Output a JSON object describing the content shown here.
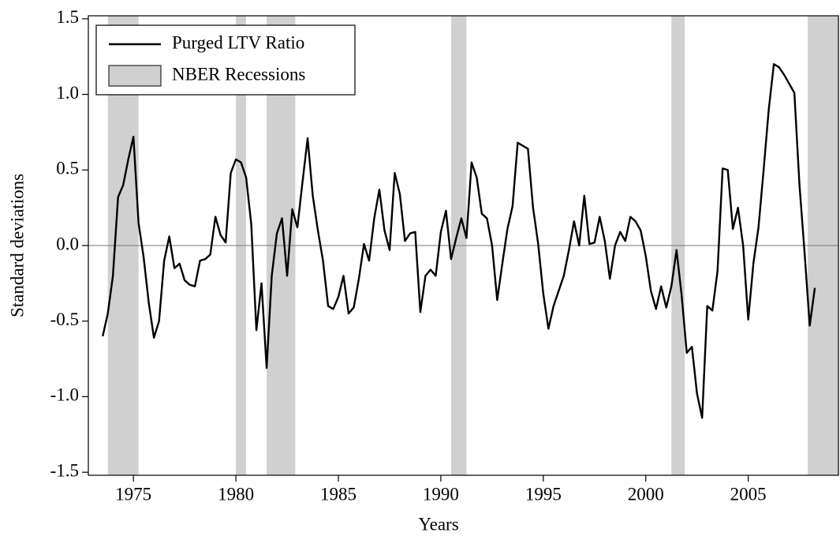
{
  "chart_data": {
    "type": "line",
    "xlabel": "Years",
    "ylabel": "Standard deviations",
    "xlim": [
      1972.8,
      2009.4
    ],
    "xticks": [
      1975,
      1980,
      1985,
      1990,
      1995,
      2000,
      2005
    ],
    "ylim": [
      -1.52,
      1.52
    ],
    "yticks": [
      1.5,
      {
        "value": 1.0,
        "label": "1.0"
      },
      0.5,
      {
        "value": 0.0,
        "label": "0.0"
      },
      -0.5,
      {
        "value": -1.0,
        "label": "-1.0"
      },
      -1.5
    ],
    "legend": "upper left",
    "x": [
      1973.5,
      1973.75,
      1974,
      1974.25,
      1974.5,
      1974.75,
      1975,
      1975.25,
      1975.5,
      1975.75,
      1976,
      1976.25,
      1976.5,
      1976.75,
      1977,
      1977.25,
      1977.5,
      1977.75,
      1978,
      1978.25,
      1978.5,
      1978.75,
      1979,
      1979.25,
      1979.5,
      1979.75,
      1980,
      1980.25,
      1980.5,
      1980.75,
      1981,
      1981.25,
      1981.5,
      1981.75,
      1982,
      1982.25,
      1982.5,
      1982.75,
      1983,
      1983.25,
      1983.5,
      1983.75,
      1984,
      1984.25,
      1984.5,
      1984.75,
      1985,
      1985.25,
      1985.5,
      1985.75,
      1986,
      1986.25,
      1986.5,
      1986.75,
      1987,
      1987.25,
      1987.5,
      1987.75,
      1988,
      1988.25,
      1988.5,
      1988.75,
      1989,
      1989.25,
      1989.5,
      1989.75,
      1990,
      1990.25,
      1990.5,
      1990.75,
      1991,
      1991.25,
      1991.5,
      1991.75,
      1992,
      1992.25,
      1992.5,
      1992.75,
      1993,
      1993.25,
      1993.5,
      1993.75,
      1994,
      1994.25,
      1994.5,
      1994.75,
      1995,
      1995.25,
      1995.5,
      1995.75,
      1996,
      1996.25,
      1996.5,
      1996.75,
      1997,
      1997.25,
      1997.5,
      1997.75,
      1998,
      1998.25,
      1998.5,
      1998.75,
      1999,
      1999.25,
      1999.5,
      1999.75,
      2000,
      2000.25,
      2000.5,
      2000.75,
      2001,
      2001.25,
      2001.5,
      2001.75,
      2002,
      2002.25,
      2002.5,
      2002.75,
      2003,
      2003.25,
      2003.5,
      2003.75,
      2004,
      2004.25,
      2004.5,
      2004.75,
      2005,
      2005.25,
      2005.5,
      2005.75,
      2006,
      2006.25,
      2006.5,
      2006.75,
      2007,
      2007.25,
      2007.5,
      2007.75,
      2008,
      2008.25
    ],
    "series": [
      {
        "name": "Purged LTV Ratio",
        "color": "#000000",
        "values": [
          -0.6,
          -0.45,
          -0.2,
          0.32,
          0.4,
          0.57,
          0.72,
          0.15,
          -0.08,
          -0.38,
          -0.61,
          -0.5,
          -0.1,
          0.06,
          -0.15,
          -0.12,
          -0.23,
          -0.26,
          -0.27,
          -0.1,
          -0.09,
          -0.06,
          0.19,
          0.07,
          0.02,
          0.48,
          0.57,
          0.55,
          0.45,
          0.14,
          -0.56,
          -0.25,
          -0.81,
          -0.2,
          0.08,
          0.18,
          -0.2,
          0.24,
          0.12,
          0.42,
          0.71,
          0.33,
          0.1,
          -0.1,
          -0.4,
          -0.42,
          -0.34,
          -0.2,
          -0.45,
          -0.41,
          -0.22,
          0.01,
          -0.1,
          0.18,
          0.37,
          0.1,
          -0.03,
          0.48,
          0.34,
          0.03,
          0.08,
          0.09,
          -0.44,
          -0.2,
          -0.16,
          -0.2,
          0.09,
          0.23,
          -0.09,
          0.05,
          0.18,
          0.05,
          0.55,
          0.45,
          0.21,
          0.18,
          0.0,
          -0.36,
          -0.12,
          0.11,
          0.26,
          0.68,
          0.66,
          0.64,
          0.25,
          0.01,
          -0.32,
          -0.55,
          -0.4,
          -0.3,
          -0.2,
          -0.03,
          0.16,
          0.0,
          0.33,
          0.01,
          0.02,
          0.19,
          0.03,
          -0.22,
          0.0,
          0.09,
          0.03,
          0.19,
          0.16,
          0.1,
          -0.07,
          -0.3,
          -0.42,
          -0.27,
          -0.41,
          -0.27,
          -0.03,
          -0.33,
          -0.71,
          -0.67,
          -0.98,
          -1.14,
          -0.4,
          -0.43,
          -0.17,
          0.51,
          0.5,
          0.11,
          0.25,
          0.0,
          -0.49,
          -0.12,
          0.12,
          0.5,
          0.9,
          1.2,
          1.18,
          1.13,
          1.07,
          1.01,
          0.4,
          -0.05,
          -0.53,
          -0.28
        ]
      },
      {
        "name": "NBER Recessions",
        "color": "#d0d0d0",
        "spans": [
          [
            1973.75,
            1975.25
          ],
          [
            1980.0,
            1980.5
          ],
          [
            1981.5,
            1982.9
          ],
          [
            1990.5,
            1991.25
          ],
          [
            2001.25,
            2001.9
          ],
          [
            2007.9,
            2009.4
          ]
        ]
      }
    ]
  }
}
